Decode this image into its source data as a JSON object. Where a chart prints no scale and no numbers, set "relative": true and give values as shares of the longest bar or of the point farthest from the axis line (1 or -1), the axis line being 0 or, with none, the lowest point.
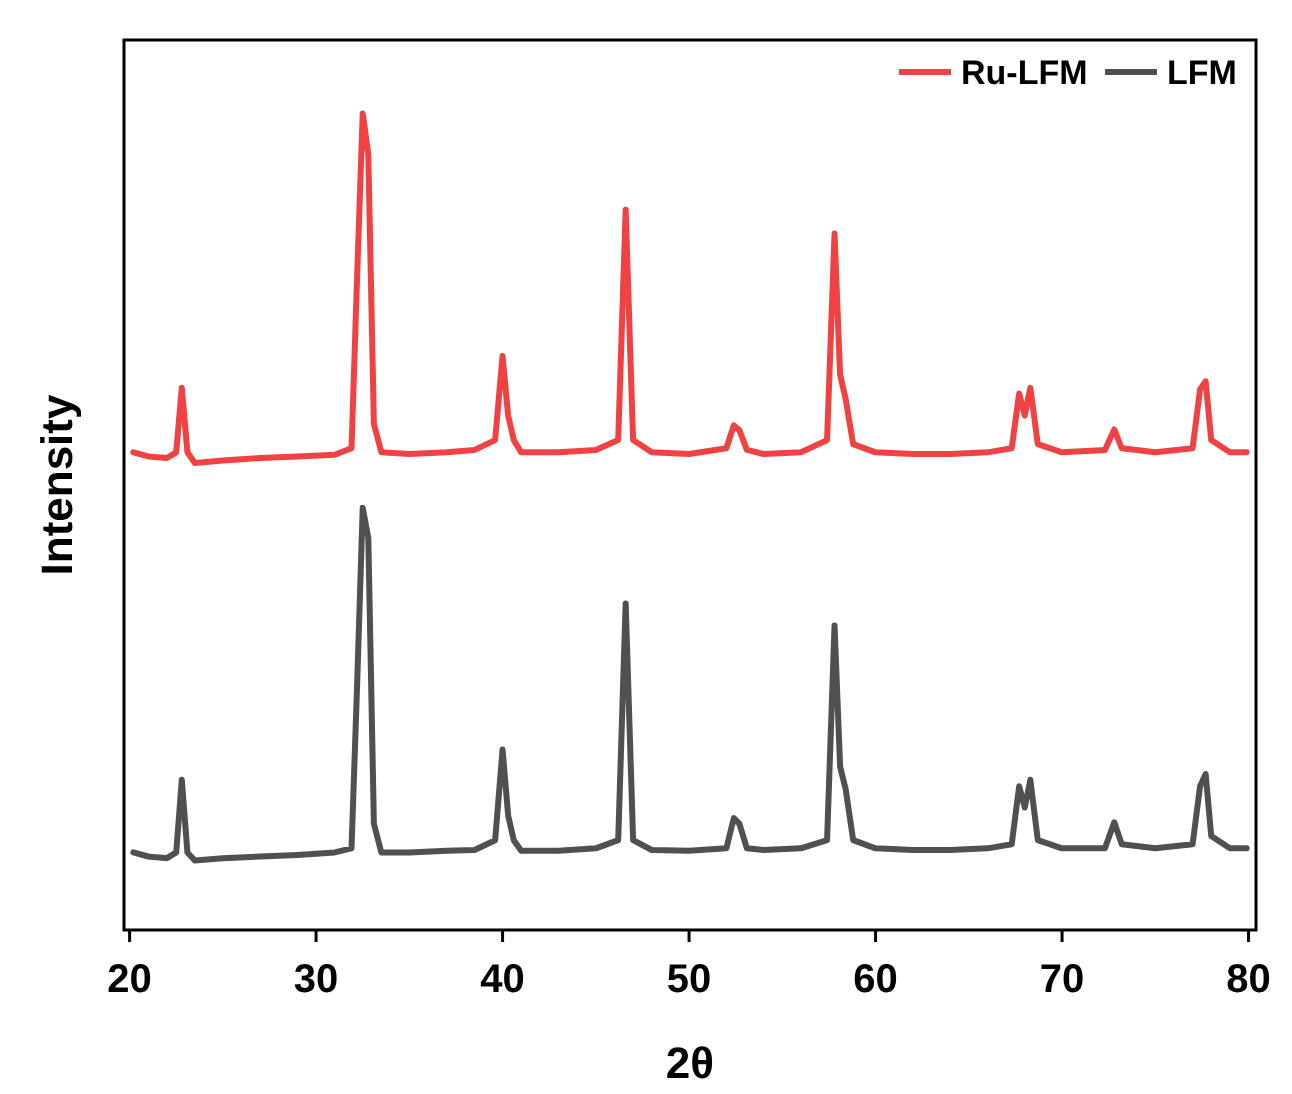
{
  "chart_data": {
    "type": "line",
    "relative": true,
    "xlabel": "2θ",
    "ylabel": "Intensity",
    "xlim": [
      19.7,
      80.4
    ],
    "xticks": [
      20,
      30,
      40,
      50,
      60,
      70,
      80
    ],
    "legend": "top right",
    "marker": "none",
    "line_style": "solid",
    "x": [
      20.2,
      21,
      22,
      22.5,
      22.8,
      23.1,
      23.5,
      25,
      27,
      29,
      31,
      31.9,
      32.2,
      32.5,
      32.8,
      33.1,
      33.5,
      35,
      37,
      38.5,
      39.6,
      40.0,
      40.3,
      40.6,
      41,
      43,
      45,
      46.2,
      46.6,
      47.0,
      48,
      50,
      52.0,
      52.4,
      52.7,
      53.1,
      54,
      56,
      57.4,
      57.8,
      58.1,
      58.4,
      58.8,
      60,
      62,
      64,
      66,
      67.3,
      67.7,
      68.0,
      68.3,
      68.7,
      70,
      72.3,
      72.8,
      73.2,
      75,
      77.0,
      77.4,
      77.7,
      78.0,
      79,
      79.9
    ],
    "series": [
      {
        "name": "Ru-LFM",
        "color": "#f04242",
        "values": [
          0.585,
          0.58,
          0.578,
          0.585,
          0.664,
          0.585,
          0.572,
          0.575,
          0.578,
          0.58,
          0.582,
          0.59,
          0.8,
          1.0,
          0.95,
          0.62,
          0.585,
          0.583,
          0.585,
          0.588,
          0.6,
          0.703,
          0.63,
          0.6,
          0.585,
          0.585,
          0.588,
          0.6,
          0.882,
          0.6,
          0.585,
          0.583,
          0.59,
          0.618,
          0.612,
          0.588,
          0.583,
          0.585,
          0.6,
          0.853,
          0.68,
          0.65,
          0.595,
          0.585,
          0.583,
          0.583,
          0.585,
          0.59,
          0.657,
          0.63,
          0.664,
          0.595,
          0.585,
          0.588,
          0.613,
          0.59,
          0.585,
          0.59,
          0.662,
          0.672,
          0.6,
          0.585,
          0.585
        ]
      },
      {
        "name": "LFM",
        "color": "#505050",
        "values": [
          0.095,
          0.09,
          0.088,
          0.095,
          0.184,
          0.095,
          0.085,
          0.088,
          0.09,
          0.092,
          0.095,
          0.1,
          0.3,
          0.517,
          0.48,
          0.13,
          0.095,
          0.095,
          0.097,
          0.098,
          0.11,
          0.221,
          0.14,
          0.11,
          0.097,
          0.097,
          0.1,
          0.11,
          0.4,
          0.11,
          0.098,
          0.097,
          0.1,
          0.137,
          0.13,
          0.1,
          0.098,
          0.1,
          0.11,
          0.373,
          0.2,
          0.172,
          0.11,
          0.1,
          0.098,
          0.098,
          0.1,
          0.105,
          0.176,
          0.15,
          0.184,
          0.11,
          0.1,
          0.1,
          0.132,
          0.105,
          0.1,
          0.105,
          0.176,
          0.191,
          0.115,
          0.1,
          0.1
        ]
      }
    ]
  }
}
